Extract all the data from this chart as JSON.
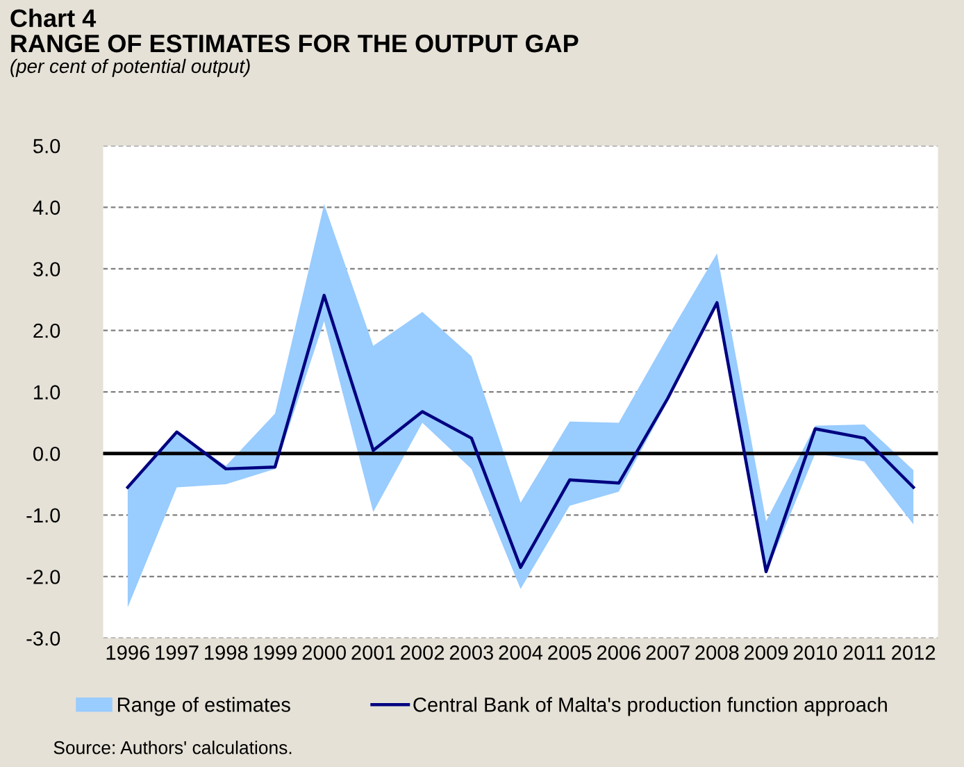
{
  "chart_data": {
    "type": "line",
    "title": "Chart 4",
    "subtitle": "RANGE OF ESTIMATES FOR THE OUTPUT GAP",
    "ylabel": "(per cent of potential output)",
    "annotations": [
      "Source: Authors' calculations."
    ],
    "categories": [
      "1996",
      "1997",
      "1998",
      "1999",
      "2000",
      "2001",
      "2002",
      "2003",
      "2004",
      "2005",
      "2006",
      "2007",
      "2008",
      "2009",
      "2010",
      "2011",
      "2012"
    ],
    "series": [
      {
        "name": "Range of estimates",
        "type": "area",
        "color": "#99ccff",
        "lower": [
          -2.5,
          -0.55,
          -0.5,
          -0.25,
          2.15,
          -0.95,
          0.5,
          -0.25,
          -2.2,
          -0.85,
          -0.62,
          0.85,
          2.45,
          -1.95,
          0.0,
          -0.13,
          -1.15
        ],
        "upper": [
          -0.55,
          0.35,
          -0.2,
          0.65,
          4.05,
          1.75,
          2.3,
          1.58,
          -0.8,
          0.52,
          0.5,
          1.9,
          3.25,
          -1.1,
          0.45,
          0.47,
          -0.27
        ],
        "values": [
          null,
          null,
          null,
          null,
          null,
          null,
          null,
          null,
          null,
          null,
          null,
          null,
          null,
          null,
          null,
          null,
          null
        ]
      },
      {
        "name": "Central Bank of Malta's production function approach",
        "type": "line",
        "color": "#000080",
        "values": [
          -0.55,
          0.35,
          -0.25,
          -0.22,
          2.57,
          0.05,
          0.68,
          0.25,
          -1.85,
          -0.43,
          -0.48,
          0.9,
          2.45,
          -1.92,
          0.4,
          0.25,
          -0.55
        ]
      }
    ],
    "ylim": [
      -3.0,
      5.0
    ],
    "yticks": [
      {
        "value": -3,
        "label": "-3.0"
      },
      {
        "value": -2,
        "label": "-2.0"
      },
      {
        "value": -1,
        "label": "-1.0"
      },
      {
        "value": 0,
        "label": "0.0"
      },
      {
        "value": 1,
        "label": "1.0"
      },
      {
        "value": 2,
        "label": "2.0"
      },
      {
        "value": 3,
        "label": "3.0"
      },
      {
        "value": 4,
        "label": "4.0"
      },
      {
        "value": 5,
        "label": "5.0"
      }
    ],
    "ref_lines": [
      {
        "axis": "y",
        "value": 0,
        "color": "#000000"
      }
    ],
    "grid": "y",
    "legend": "bottom",
    "marker": "none",
    "line_style": "solid"
  }
}
